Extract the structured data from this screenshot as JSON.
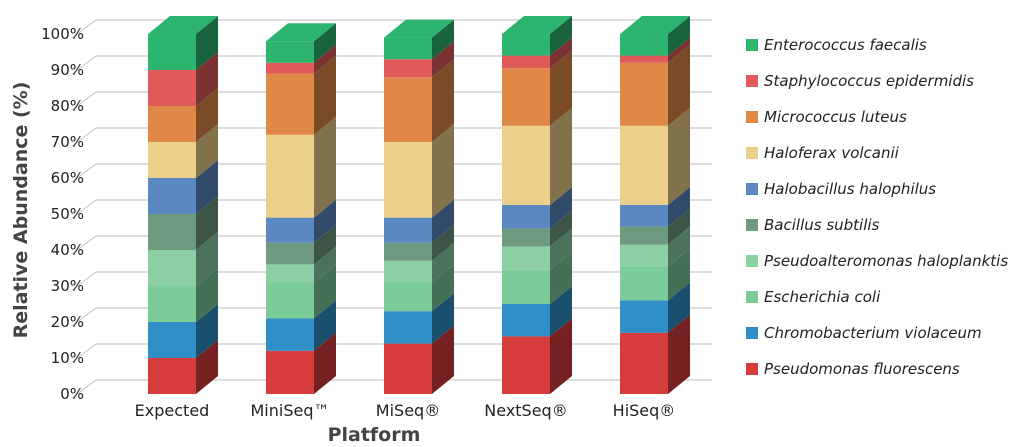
{
  "chart_data": {
    "type": "bar",
    "stacked": true,
    "three_d": true,
    "title": "",
    "xlabel": "Platform",
    "ylabel": "Relative Abundance (%)",
    "ylim": [
      0,
      100
    ],
    "yticks": [
      "0%",
      "10%",
      "20%",
      "30%",
      "40%",
      "50%",
      "60%",
      "70%",
      "80%",
      "90%",
      "100%"
    ],
    "grid": true,
    "legend_position": "right",
    "categories": [
      "Expected",
      "MiniSeq™",
      "MiSeq®",
      "NextSeq®",
      "HiSeq®"
    ],
    "series": [
      {
        "name": "Pseudomonas fluorescens",
        "color": "#d63c3c",
        "values": [
          10,
          12,
          14,
          16,
          17
        ]
      },
      {
        "name": "Chromobacterium violaceum",
        "color": "#2f8fc6",
        "values": [
          10,
          9,
          9,
          9,
          9
        ]
      },
      {
        "name": "Escherichia coli",
        "color": "#7ccc9a",
        "values": [
          10,
          10,
          8,
          9.5,
          9.5
        ]
      },
      {
        "name": "Pseudoalteromonas haloplanktis",
        "color": "#8ccfa5",
        "values": [
          10,
          5,
          6,
          6.5,
          6
        ]
      },
      {
        "name": "Bacillus subtilis",
        "color": "#6f9a80",
        "values": [
          10,
          6,
          5,
          5,
          5
        ]
      },
      {
        "name": "Halobacillus halophilus",
        "color": "#5b88c1",
        "values": [
          10,
          7,
          7,
          6.5,
          6
        ]
      },
      {
        "name": "Haloferax volcanii",
        "color": "#ead08a",
        "values": [
          10,
          23,
          21,
          22,
          22
        ]
      },
      {
        "name": "Micrococcus luteus",
        "color": "#e08848",
        "values": [
          10,
          17,
          18,
          16,
          17.5
        ]
      },
      {
        "name": "Staphylococcus epidermidis",
        "color": "#e05a5a",
        "values": [
          10,
          3,
          5,
          3.5,
          2
        ]
      },
      {
        "name": "Enterococcus faecalis",
        "color": "#2db46e",
        "values": [
          10,
          6,
          6,
          6,
          6
        ]
      }
    ]
  }
}
